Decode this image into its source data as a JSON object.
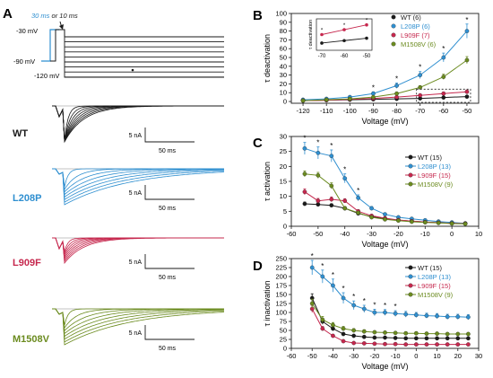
{
  "figure": {
    "panels": {
      "A": "A",
      "B": "B",
      "C": "C",
      "D": "D"
    },
    "colors": {
      "WT": "#1a1a1a",
      "L208P": "#2f8fd0",
      "L909F": "#c6284e",
      "M1508V": "#6b8b1f",
      "protocol_blue": "#2f8fd0"
    }
  },
  "protocol": {
    "time_30": "30 ms",
    "time_or": " or ",
    "time_10": "10 ms",
    "v_hold_high": "-30 mV",
    "v_hold_low": "-90 mV",
    "v_rest": "-120 mV"
  },
  "traces": [
    {
      "label": "WT",
      "color": "#1a1a1a",
      "scale_current": "5 nA",
      "scale_time": "50 ms"
    },
    {
      "label": "L208P",
      "color": "#2f8fd0",
      "scale_current": "5 nA",
      "scale_time": "50 ms"
    },
    {
      "label": "L909F",
      "color": "#c6284e",
      "scale_current": "5 nA",
      "scale_time": "50 ms"
    },
    {
      "label": "M1508V",
      "color": "#6b8b1f",
      "scale_current": "5 nA",
      "scale_time": "50 ms"
    }
  ],
  "chart_data": [
    {
      "panel": "B",
      "type": "line",
      "xlabel": "Voltage (mV)",
      "ylabel": "τ deactivation",
      "xlim": [
        -125,
        -45
      ],
      "ylim": [
        -2,
        100
      ],
      "xticks": [
        -120,
        -110,
        -100,
        -90,
        -80,
        -70,
        -60,
        -50
      ],
      "yticks": [
        0,
        10,
        20,
        30,
        40,
        50,
        60,
        70,
        80,
        90,
        100
      ],
      "legend_position": "top-right",
      "x": [
        -120,
        -110,
        -100,
        -90,
        -80,
        -70,
        -60,
        -50
      ],
      "series": [
        {
          "name": "WT (6)",
          "color": "#1a1a1a",
          "values": [
            1,
            1.5,
            2,
            2.5,
            3,
            3.5,
            4.5,
            5.5
          ],
          "err": [
            0.3,
            0.3,
            0.4,
            0.4,
            0.5,
            0.5,
            0.6,
            0.8
          ]
        },
        {
          "name": "L208P (6)",
          "color": "#2f8fd0",
          "values": [
            2,
            3,
            5,
            9,
            18,
            30,
            50,
            80
          ],
          "err": [
            0.5,
            1,
            1.5,
            2,
            3,
            4,
            5,
            8
          ]
        },
        {
          "name": "L909F (7)",
          "color": "#c6284e",
          "values": [
            1,
            1.5,
            2.5,
            3.5,
            5,
            7,
            9,
            11
          ],
          "err": [
            0.3,
            0.4,
            0.5,
            0.6,
            0.8,
            1,
            1.5,
            2
          ]
        },
        {
          "name": "M1508V (6)",
          "color": "#6b8b1f",
          "values": [
            1,
            2,
            3,
            5,
            9,
            16,
            28,
            47
          ],
          "err": [
            0.3,
            0.5,
            0.6,
            1,
            1.5,
            2,
            3,
            4
          ]
        }
      ],
      "inset": {
        "ylabel": "τ deactivation",
        "xticks": [
          -70,
          -60,
          -50
        ],
        "x": [
          -70,
          -60,
          -50
        ],
        "series": [
          {
            "name": "WT (6)",
            "color": "#1a1a1a",
            "values": [
              3.5,
              4.5,
              5.5
            ]
          },
          {
            "name": "L909F (7)",
            "color": "#c6284e",
            "values": [
              7,
              9,
              11
            ]
          }
        ]
      }
    },
    {
      "panel": "C",
      "type": "line",
      "xlabel": "Voltage (mV)",
      "ylabel": "τ activation",
      "xlim": [
        -60,
        10
      ],
      "ylim": [
        0,
        30
      ],
      "xticks": [
        -60,
        -50,
        -40,
        -30,
        -20,
        -10,
        0,
        10
      ],
      "yticks": [
        0,
        5,
        10,
        15,
        20,
        25,
        30
      ],
      "legend_position": "top-right",
      "x": [
        -55,
        -50,
        -45,
        -40,
        -35,
        -30,
        -25,
        -20,
        -15,
        -10,
        -5,
        0,
        5
      ],
      "series": [
        {
          "name": "WT (15)",
          "color": "#1a1a1a",
          "values": [
            7.5,
            7.3,
            7,
            6,
            4.3,
            3.2,
            2.5,
            2,
            1.7,
            1.4,
            1.2,
            1,
            0.9
          ],
          "err": [
            0.6,
            0.5,
            0.5,
            0.5,
            0.4,
            0.3,
            0.2,
            0.2,
            0.2,
            0.1,
            0.1,
            0.1,
            0.1
          ]
        },
        {
          "name": "L208P (13)",
          "color": "#2f8fd0",
          "values": [
            26,
            24.5,
            23.5,
            16,
            9.5,
            6,
            4,
            3,
            2.5,
            2,
            1.6,
            1.3,
            1
          ],
          "err": [
            2,
            2,
            2,
            1.5,
            1,
            0.6,
            0.4,
            0.3,
            0.3,
            0.2,
            0.2,
            0.1,
            0.1
          ]
        },
        {
          "name": "L909F (15)",
          "color": "#c6284e",
          "values": [
            11.5,
            8.5,
            9,
            8.5,
            5,
            3.5,
            2.7,
            2.1,
            1.7,
            1.4,
            1.2,
            1,
            0.9
          ],
          "err": [
            1,
            0.8,
            0.8,
            0.7,
            0.5,
            0.3,
            0.3,
            0.2,
            0.2,
            0.1,
            0.1,
            0.1,
            0.1
          ]
        },
        {
          "name": "M1508V (9)",
          "color": "#6b8b1f",
          "values": [
            17.5,
            17,
            13.5,
            6,
            4.5,
            3,
            2.3,
            1.9,
            1.5,
            1.3,
            1.1,
            0.9,
            0.8
          ],
          "err": [
            1,
            1,
            1,
            0.6,
            0.4,
            0.3,
            0.2,
            0.2,
            0.2,
            0.1,
            0.1,
            0.1,
            0.1
          ]
        }
      ]
    },
    {
      "panel": "D",
      "type": "line",
      "xlabel": "Voltage (mV)",
      "ylabel": "τ inactivation",
      "xlim": [
        -60,
        30
      ],
      "ylim": [
        0,
        250
      ],
      "xticks": [
        -60,
        -50,
        -40,
        -30,
        -20,
        -10,
        0,
        10,
        20,
        30
      ],
      "yticks": [
        0,
        25,
        50,
        75,
        100,
        125,
        150,
        175,
        200,
        225,
        250
      ],
      "legend_position": "top-right",
      "x": [
        -50,
        -45,
        -40,
        -35,
        -30,
        -25,
        -20,
        -15,
        -10,
        -5,
        0,
        5,
        10,
        15,
        20,
        25
      ],
      "series": [
        {
          "name": "WT (15)",
          "color": "#1a1a1a",
          "values": [
            140,
            75,
            55,
            40,
            35,
            32,
            30,
            30,
            29,
            28,
            28,
            28,
            28,
            28,
            28,
            28
          ],
          "err": [
            12,
            8,
            6,
            4,
            3,
            3,
            2,
            2,
            2,
            2,
            2,
            2,
            2,
            2,
            2,
            2
          ]
        },
        {
          "name": "L208P (13)",
          "color": "#2f8fd0",
          "values": [
            225,
            200,
            175,
            140,
            120,
            110,
            100,
            100,
            97,
            95,
            93,
            91,
            90,
            88,
            88,
            87
          ],
          "err": [
            20,
            18,
            18,
            15,
            12,
            10,
            9,
            8,
            8,
            8,
            7,
            7,
            7,
            7,
            7,
            7
          ]
        },
        {
          "name": "L909F (15)",
          "color": "#c6284e",
          "values": [
            110,
            55,
            35,
            20,
            15,
            14,
            13,
            12,
            12,
            11,
            11,
            11,
            11,
            11,
            11,
            11
          ],
          "err": [
            10,
            6,
            4,
            3,
            2,
            2,
            2,
            1,
            1,
            1,
            1,
            1,
            1,
            1,
            1,
            1
          ]
        },
        {
          "name": "M1508V (9)",
          "color": "#6b8b1f",
          "values": [
            125,
            80,
            65,
            55,
            50,
            47,
            45,
            44,
            43,
            42,
            42,
            41,
            41,
            40,
            40,
            40
          ],
          "err": [
            12,
            9,
            7,
            6,
            5,
            5,
            4,
            4,
            4,
            4,
            4,
            4,
            4,
            4,
            4,
            4
          ]
        }
      ]
    }
  ]
}
